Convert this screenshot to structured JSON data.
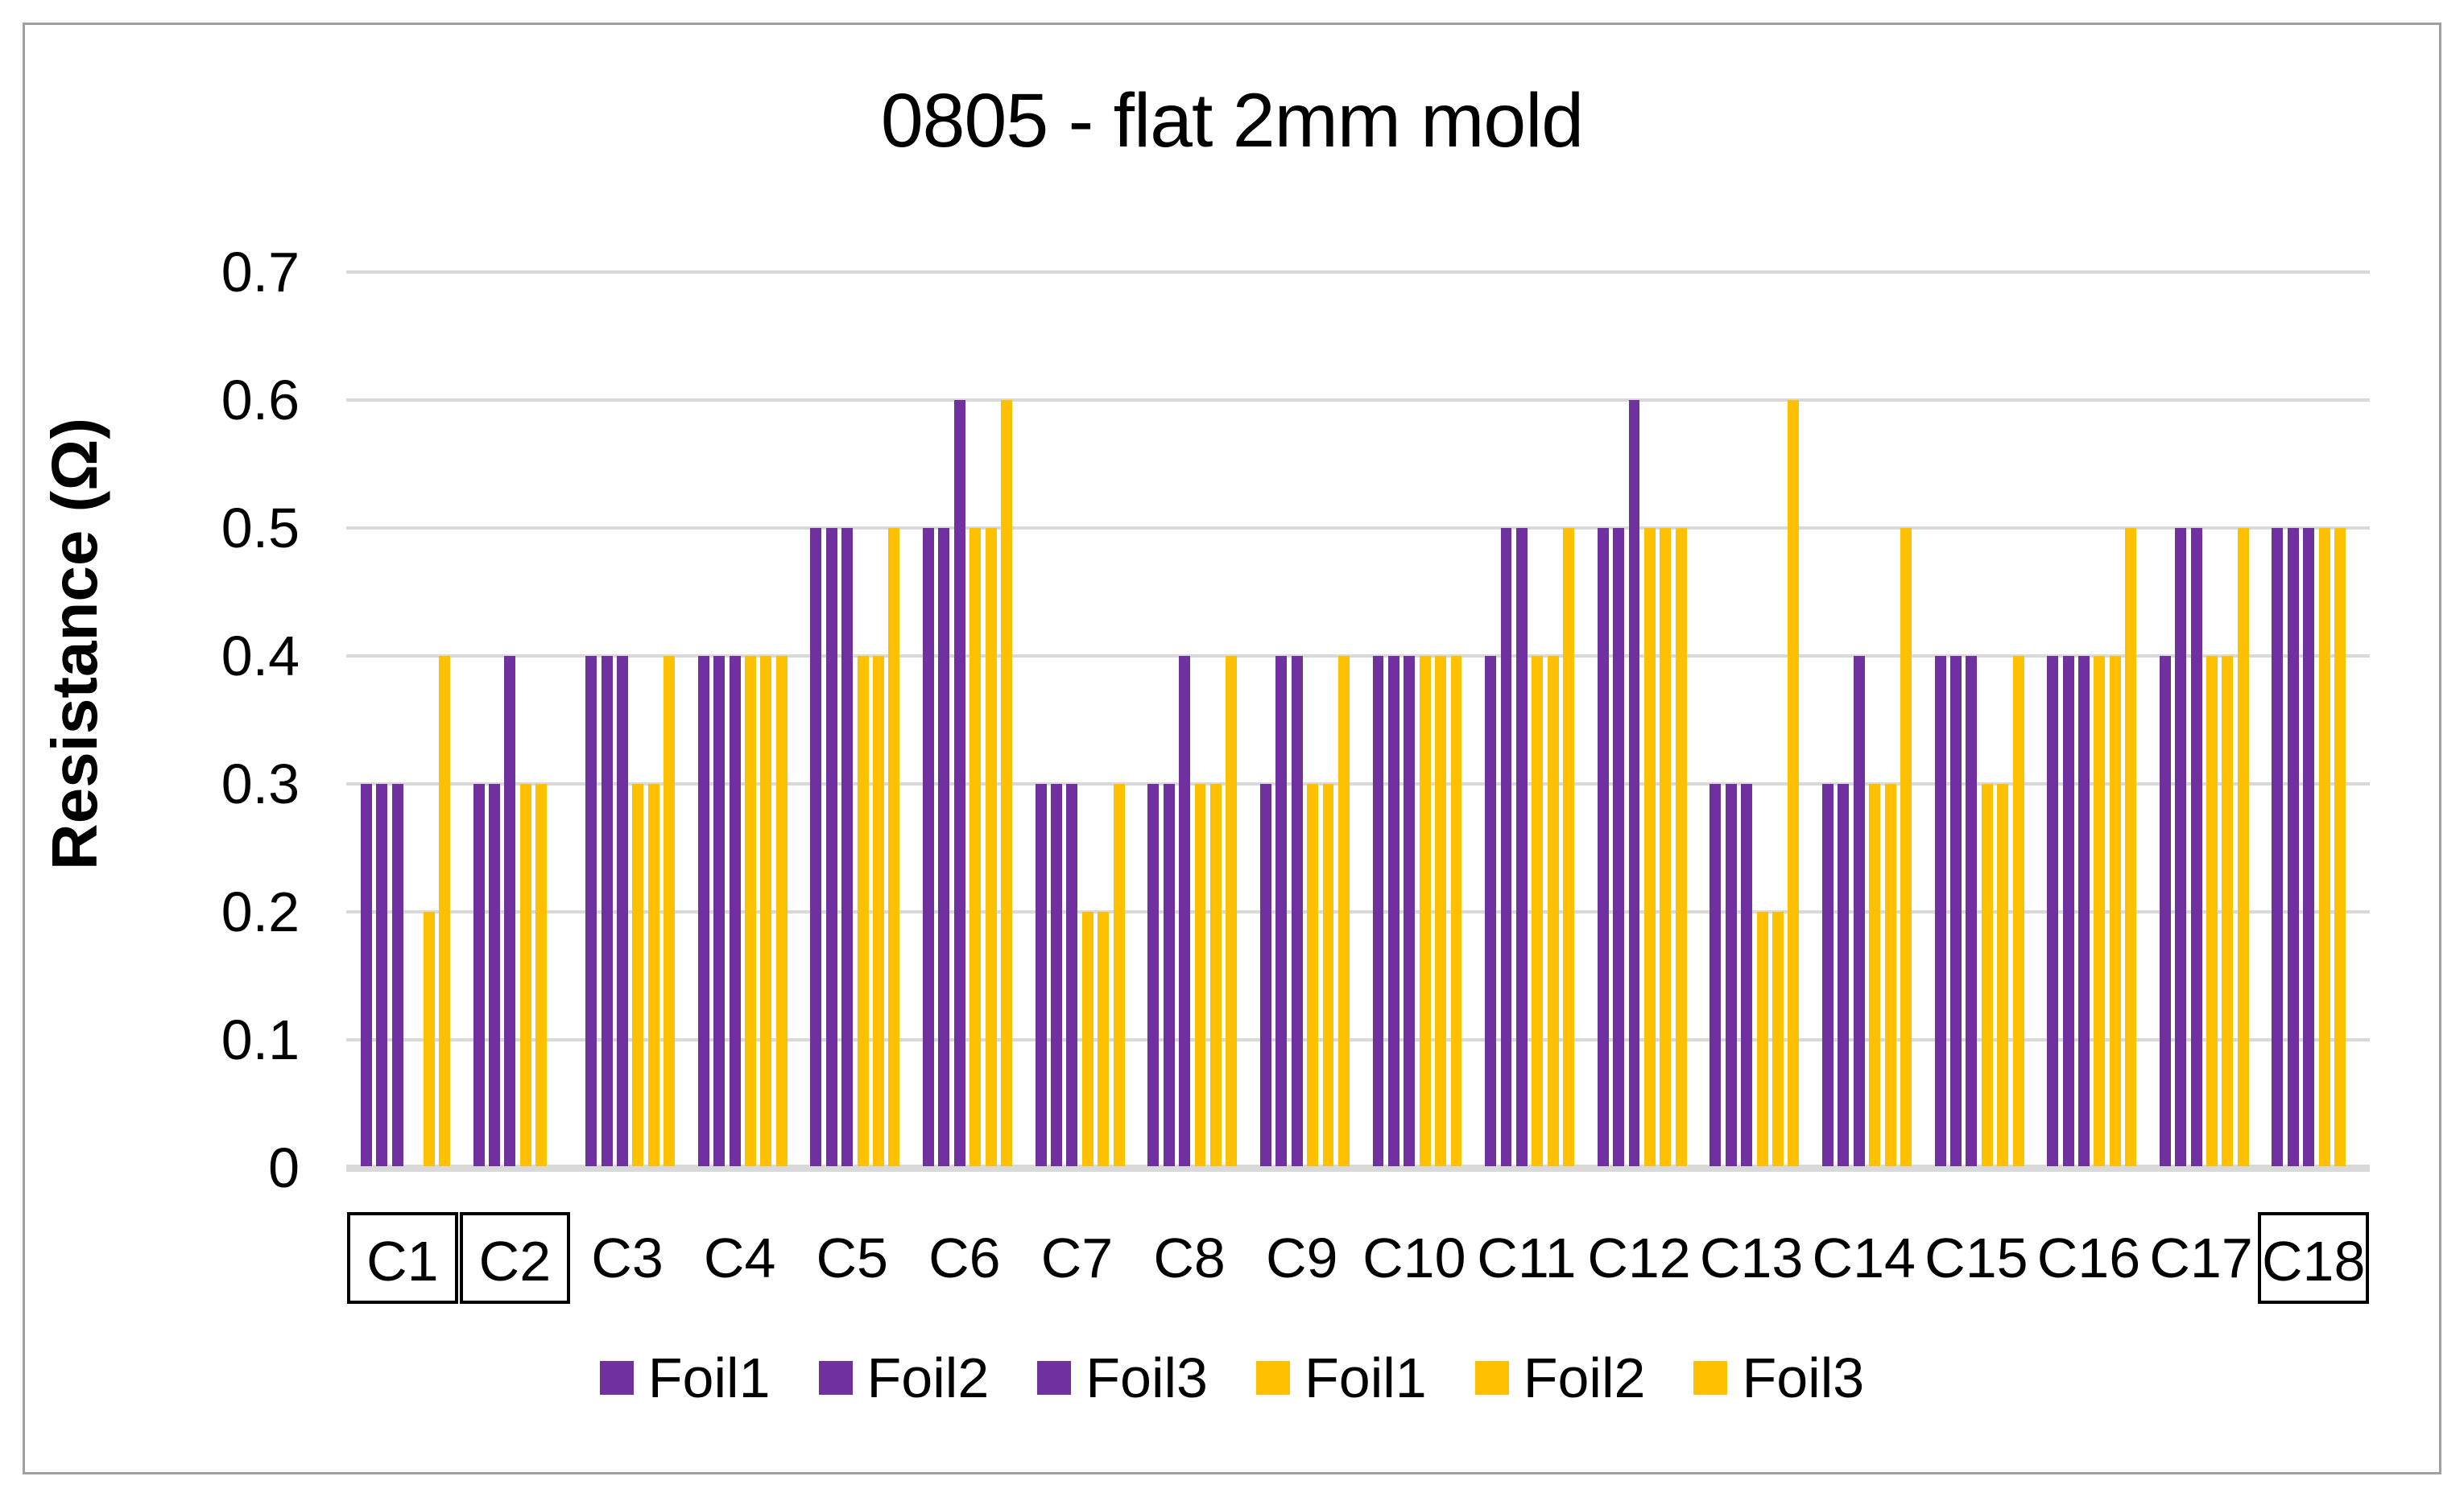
{
  "figure": {
    "border_color": "#A0A0A0",
    "background": "#FFFFFF"
  },
  "chart_data": {
    "type": "bar",
    "title": "0805 - flat 2mm mold",
    "ylabel": "Resistance (Ω)",
    "xlabel": "",
    "ylim": [
      0,
      0.7
    ],
    "ytick_step": 0.1,
    "yticks": [
      "0",
      "0.1",
      "0.2",
      "0.3",
      "0.4",
      "0.5",
      "0.6",
      "0.7"
    ],
    "grid": true,
    "legend_position": "bottom",
    "categories": [
      "C1",
      "C2",
      "C3",
      "C4",
      "C5",
      "C6",
      "C7",
      "C8",
      "C9",
      "C10",
      "C11",
      "C12",
      "C13",
      "C14",
      "C15",
      "C16",
      "C17",
      "C18"
    ],
    "boxed_categories": [
      "C1",
      "C2",
      "C18"
    ],
    "series": [
      {
        "name": "Foil1",
        "group": "purple",
        "color": "#7030A0",
        "values": [
          0.3,
          0.3,
          0.4,
          0.4,
          0.5,
          0.5,
          0.3,
          0.3,
          0.3,
          0.4,
          0.4,
          0.5,
          0.3,
          0.3,
          0.4,
          0.4,
          0.4,
          0.5
        ]
      },
      {
        "name": "Foil2",
        "group": "purple",
        "color": "#7030A0",
        "values": [
          0.3,
          0.3,
          0.4,
          0.4,
          0.5,
          0.5,
          0.3,
          0.3,
          0.4,
          0.4,
          0.5,
          0.5,
          0.3,
          0.3,
          0.4,
          0.4,
          0.5,
          0.5
        ]
      },
      {
        "name": "Foil3",
        "group": "purple",
        "color": "#7030A0",
        "values": [
          0.3,
          0.4,
          0.4,
          0.4,
          0.5,
          0.6,
          0.3,
          0.4,
          0.4,
          0.4,
          0.5,
          0.6,
          0.3,
          0.4,
          0.4,
          0.4,
          0.5,
          0.5
        ]
      },
      {
        "name": "Foil1",
        "group": "gold",
        "color": "#FFC000",
        "values": [
          null,
          0.3,
          0.3,
          0.4,
          0.4,
          0.5,
          0.2,
          0.3,
          0.3,
          0.4,
          0.4,
          0.5,
          0.2,
          0.3,
          0.3,
          0.4,
          0.4,
          0.5
        ]
      },
      {
        "name": "Foil2",
        "group": "gold",
        "color": "#FFC000",
        "values": [
          0.2,
          0.3,
          0.3,
          0.4,
          0.4,
          0.5,
          0.2,
          0.3,
          0.3,
          0.4,
          0.4,
          0.5,
          0.2,
          0.3,
          0.3,
          0.4,
          0.4,
          0.5
        ]
      },
      {
        "name": "Foil3",
        "group": "gold",
        "color": "#FFC000",
        "values": [
          0.4,
          null,
          0.4,
          0.4,
          0.5,
          0.6,
          0.3,
          0.4,
          0.4,
          0.4,
          0.5,
          0.5,
          0.6,
          0.5,
          0.4,
          0.5,
          0.5,
          null
        ]
      }
    ],
    "colors": {
      "purple": "#7030A0",
      "gold": "#FFC000",
      "gridline": "#D9D9D9",
      "axis_line": "#D9D9D9",
      "text": "#000000",
      "category_box_border": "#000000"
    }
  }
}
